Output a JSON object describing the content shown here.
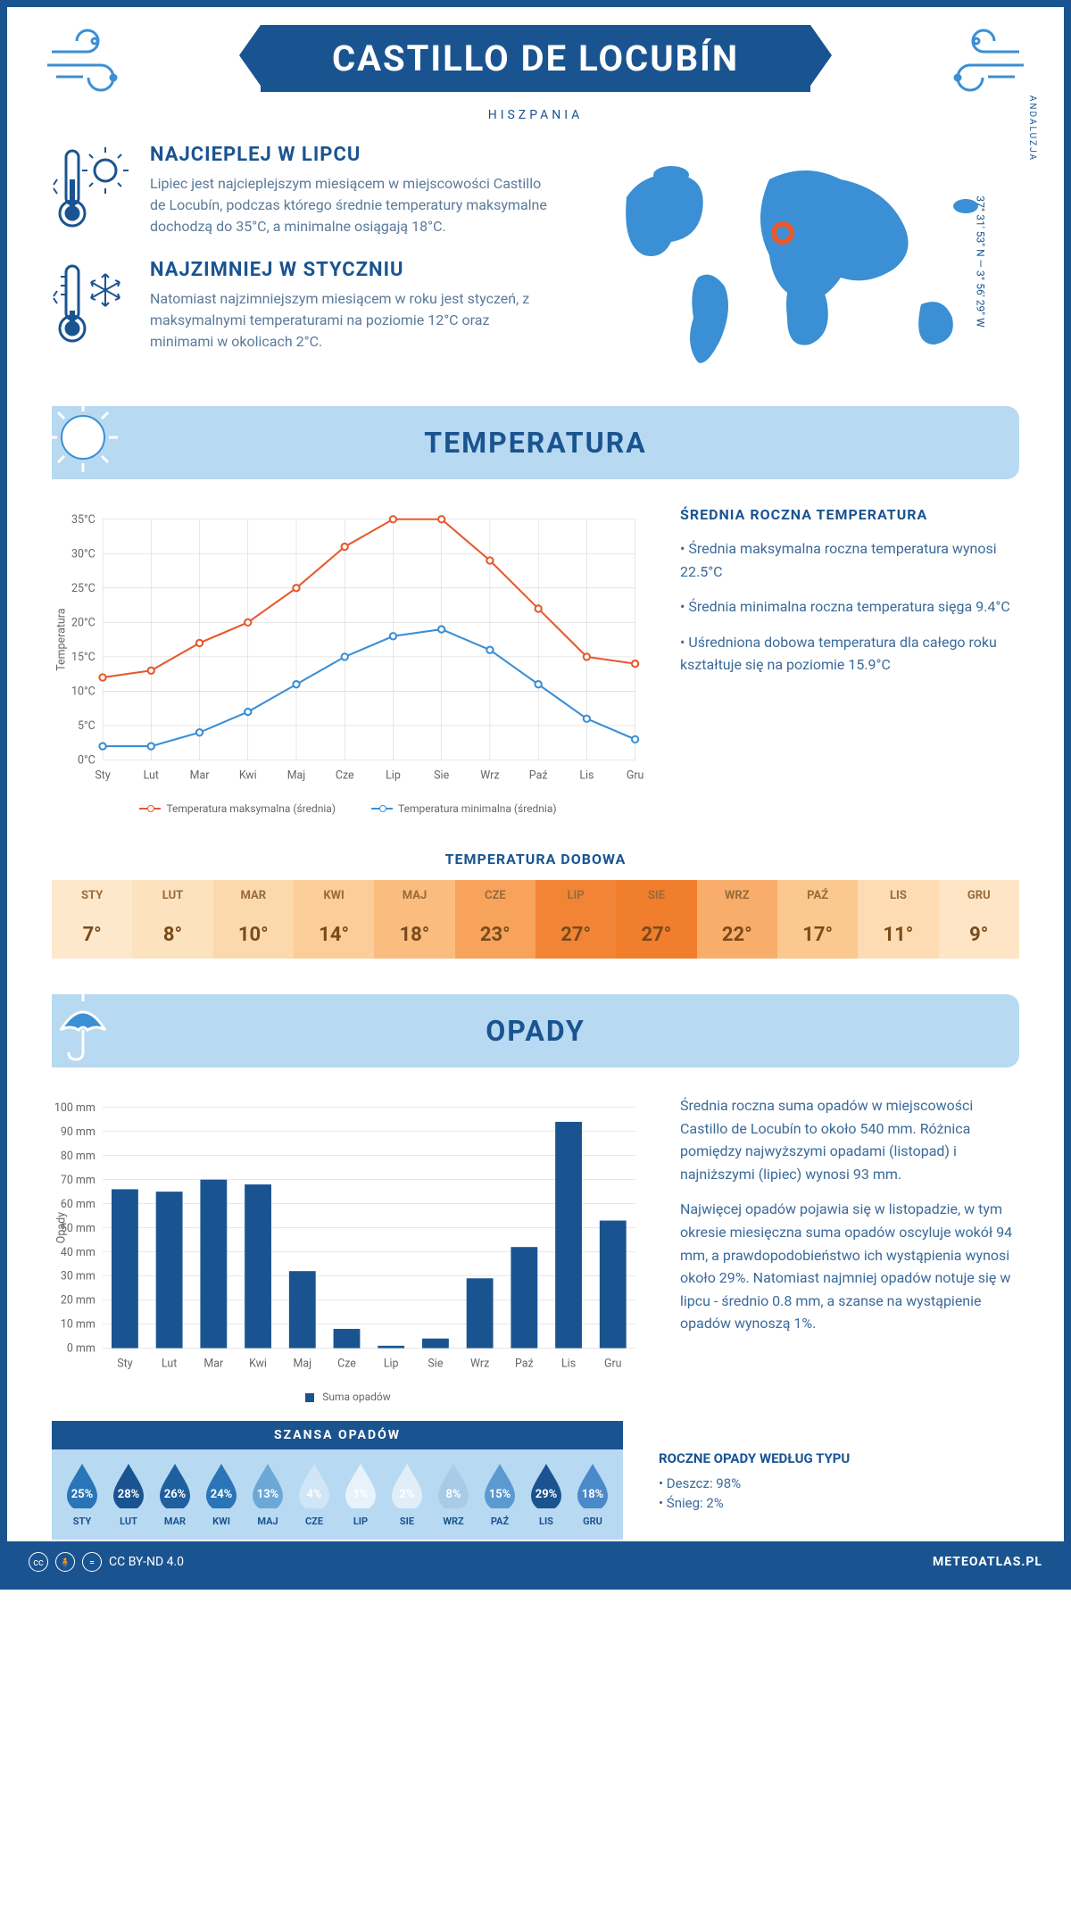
{
  "header": {
    "title": "CASTILLO DE LOCUBÍN",
    "subtitle": "HISZPANIA",
    "coords": "37° 31' 53\" N — 3° 56' 29\" W",
    "region": "ANDALUZJA"
  },
  "intro": {
    "hot": {
      "title": "NAJCIEPLEJ W LIPCU",
      "text": "Lipiec jest najcieplejszym miesiącem w miejscowości Castillo de Locubín, podczas którego średnie temperatury maksymalne dochodzą do 35°C, a minimalne osiągają 18°C."
    },
    "cold": {
      "title": "NAJZIMNIEJ W STYCZNIU",
      "text": "Natomiast najzimniejszym miesiącem w roku jest styczeń, z maksymalnymi temperaturami na poziomie 12°C oraz minimami w okolicach 2°C."
    }
  },
  "sections": {
    "temperature": "TEMPERATURA",
    "precipitation": "OPADY"
  },
  "temp_chart": {
    "months": [
      "Sty",
      "Lut",
      "Mar",
      "Kwi",
      "Maj",
      "Cze",
      "Lip",
      "Sie",
      "Wrz",
      "Paź",
      "Lis",
      "Gru"
    ],
    "max": [
      12,
      13,
      17,
      20,
      25,
      31,
      35,
      35,
      29,
      22,
      15,
      14
    ],
    "min": [
      2,
      2,
      4,
      7,
      11,
      15,
      18,
      19,
      16,
      11,
      6,
      3
    ],
    "max_color": "#e8582c",
    "min_color": "#3b8fd4",
    "ylabel": "Temperatura",
    "ymin": 0,
    "ymax": 35,
    "ystep": 5,
    "legend_max": "Temperatura maksymalna (średnia)",
    "legend_min": "Temperatura minimalna (średnia)",
    "grid_color": "#d0d0d0"
  },
  "temp_side": {
    "title": "ŚREDNIA ROCZNA TEMPERATURA",
    "bullets": [
      "• Średnia maksymalna roczna temperatura wynosi 22.5°C",
      "• Średnia minimalna roczna temperatura sięga 9.4°C",
      "• Uśredniona dobowa temperatura dla całego roku kształtuje się na poziomie 15.9°C"
    ]
  },
  "daily": {
    "title": "TEMPERATURA DOBOWA",
    "months": [
      "STY",
      "LUT",
      "MAR",
      "KWI",
      "MAJ",
      "CZE",
      "LIP",
      "SIE",
      "WRZ",
      "PAŹ",
      "LIS",
      "GRU"
    ],
    "values": [
      "7°",
      "8°",
      "10°",
      "14°",
      "18°",
      "23°",
      "27°",
      "27°",
      "22°",
      "17°",
      "11°",
      "9°"
    ],
    "bg_colors": [
      "#fde8cc",
      "#fde2bf",
      "#fcd9ad",
      "#fbcd98",
      "#fabd7f",
      "#f7a35c",
      "#f28535",
      "#f07e2c",
      "#f8ad6a",
      "#fbc88f",
      "#fddcb3",
      "#fde5c5"
    ]
  },
  "precip_chart": {
    "months": [
      "Sty",
      "Lut",
      "Mar",
      "Kwi",
      "Maj",
      "Cze",
      "Lip",
      "Sie",
      "Wrz",
      "Paź",
      "Lis",
      "Gru"
    ],
    "values": [
      66,
      65,
      70,
      68,
      32,
      8,
      1,
      4,
      29,
      42,
      94,
      53
    ],
    "bar_color": "#1a5490",
    "ylabel": "Opady",
    "ymin": 0,
    "ymax": 100,
    "ystep": 10,
    "legend": "Suma opadów",
    "grid_color": "#d0d0d0"
  },
  "precip_side": {
    "p1": "Średnia roczna suma opadów w miejscowości Castillo de Locubín to około 540 mm. Różnica pomiędzy najwyższymi opadami (listopad) i najniższymi (lipiec) wynosi 93 mm.",
    "p2": "Najwięcej opadów pojawia się w listopadzie, w tym okresie miesięczna suma opadów oscyluje wokół 94 mm, a prawdopodobieństwo ich wystąpienia wynosi około 29%. Natomiast najmniej opadów notuje się w lipcu - średnio 0.8 mm, a szanse na wystąpienie opadów wynoszą 1%."
  },
  "chance": {
    "title": "SZANSA OPADÓW",
    "months": [
      "STY",
      "LUT",
      "MAR",
      "KWI",
      "MAJ",
      "CZE",
      "LIP",
      "SIE",
      "WRZ",
      "PAŹ",
      "LIS",
      "GRU"
    ],
    "values": [
      "25%",
      "28%",
      "26%",
      "24%",
      "13%",
      "4%",
      "1%",
      "2%",
      "8%",
      "15%",
      "29%",
      "18%"
    ],
    "fills": [
      "#2a75b8",
      "#1a5490",
      "#1e5fa0",
      "#2a75b8",
      "#6ba8d8",
      "#d0e5f5",
      "#e8f2fa",
      "#e0eef8",
      "#a8cce8",
      "#5a9ad0",
      "#1a5490",
      "#4a8ac8"
    ],
    "text_colors": [
      "#fff",
      "#fff",
      "#fff",
      "#fff",
      "#fff",
      "#5a8ab0",
      "#5a8ab0",
      "#5a8ab0",
      "#fff",
      "#fff",
      "#fff",
      "#fff"
    ]
  },
  "precip_type": {
    "title": "ROCZNE OPADY WEDŁUG TYPU",
    "items": [
      "• Deszcz: 98%",
      "• Śnieg: 2%"
    ]
  },
  "footer": {
    "license": "CC BY-ND 4.0",
    "site": "METEOATLAS.PL"
  }
}
